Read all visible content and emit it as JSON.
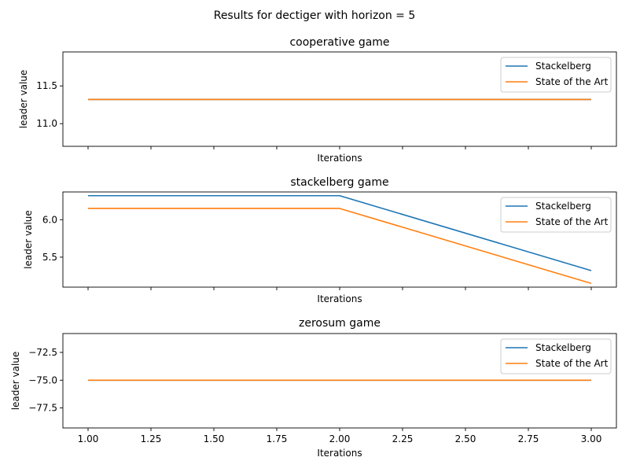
{
  "figure": {
    "suptitle": "Results for dectiger with horizon = 5"
  },
  "chart_data": [
    {
      "type": "line",
      "title": "cooperative game",
      "xlabel": "Iterations",
      "ylabel": "leader value",
      "x": [
        1.0,
        2.0,
        3.0
      ],
      "xlim": [
        0.9,
        3.1
      ],
      "ylim": [
        10.7,
        11.95
      ],
      "xticks": [
        1.0,
        1.25,
        1.5,
        1.75,
        2.0,
        2.25,
        2.5,
        2.75,
        3.0
      ],
      "xtick_labels_visible": false,
      "yticks": [
        11.0,
        11.5
      ],
      "ytick_labels": [
        "11.0",
        "11.5"
      ],
      "legend": "top-right",
      "grid": false,
      "series": [
        {
          "name": "Stackelberg",
          "color": "#1f77b4",
          "values": [
            11.32,
            11.32,
            11.32
          ]
        },
        {
          "name": "State of the Art",
          "color": "#ff7f0e",
          "values": [
            11.32,
            11.32,
            11.32
          ]
        }
      ]
    },
    {
      "type": "line",
      "title": "stackelberg game",
      "xlabel": "Iterations",
      "ylabel": "leader value",
      "x": [
        1.0,
        2.0,
        3.0
      ],
      "xlim": [
        0.9,
        3.1
      ],
      "ylim": [
        5.1,
        6.37
      ],
      "xticks": [
        1.0,
        1.25,
        1.5,
        1.75,
        2.0,
        2.25,
        2.5,
        2.75,
        3.0
      ],
      "xtick_labels_visible": false,
      "yticks": [
        5.5,
        6.0
      ],
      "ytick_labels": [
        "5.5",
        "6.0"
      ],
      "legend": "top-right",
      "grid": false,
      "series": [
        {
          "name": "Stackelberg",
          "color": "#1f77b4",
          "values": [
            6.32,
            6.32,
            5.32
          ]
        },
        {
          "name": "State of the Art",
          "color": "#ff7f0e",
          "values": [
            6.15,
            6.15,
            5.15
          ]
        }
      ]
    },
    {
      "type": "line",
      "title": "zerosum game",
      "xlabel": "Iterations",
      "ylabel": "leader value",
      "x": [
        1.0,
        2.0,
        3.0
      ],
      "xlim": [
        0.9,
        3.1
      ],
      "ylim": [
        -79.3,
        -70.8
      ],
      "xticks": [
        1.0,
        1.25,
        1.5,
        1.75,
        2.0,
        2.25,
        2.5,
        2.75,
        3.0
      ],
      "xtick_labels_visible": true,
      "xtick_labels": [
        "1.00",
        "1.25",
        "1.50",
        "1.75",
        "2.00",
        "2.25",
        "2.50",
        "2.75",
        "3.00"
      ],
      "yticks": [
        -77.5,
        -75.0,
        -72.5
      ],
      "ytick_labels": [
        "−77.5",
        "−75.0",
        "−72.5"
      ],
      "legend": "top-right",
      "grid": false,
      "series": [
        {
          "name": "Stackelberg",
          "color": "#1f77b4",
          "values": [
            -75.0,
            -75.0,
            -75.0
          ]
        },
        {
          "name": "State of the Art",
          "color": "#ff7f0e",
          "values": [
            -75.0,
            -75.0,
            -75.0
          ]
        }
      ]
    }
  ]
}
